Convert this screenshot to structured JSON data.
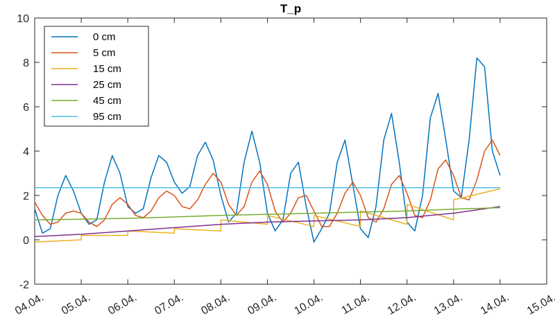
{
  "chart_data": {
    "type": "line",
    "title": "T_p",
    "xlabel": "",
    "ylabel": "",
    "ylim": [
      -2,
      10
    ],
    "xlim": [
      "04.04.",
      "15.04."
    ],
    "yticks": [
      -2,
      0,
      2,
      4,
      6,
      8,
      10
    ],
    "xticks": [
      "04.04.",
      "05.04.",
      "06.04.",
      "07.04.",
      "08.04.",
      "09.04.",
      "10.04.",
      "11.04.",
      "12.04.",
      "13.04.",
      "14.04.",
      "15.04."
    ],
    "grid": false,
    "legend_position": "top-left",
    "series": [
      {
        "name": "0 cm",
        "color": "#0072BD",
        "x": [
          "04.04. 00:00",
          "04.04. 04:00",
          "04.04. 08:00",
          "04.04. 12:00",
          "04.04. 16:00",
          "04.04. 20:00",
          "05.04. 00:00",
          "05.04. 04:00",
          "05.04. 08:00",
          "05.04. 12:00",
          "05.04. 16:00",
          "05.04. 20:00",
          "06.04. 00:00",
          "06.04. 04:00",
          "06.04. 08:00",
          "06.04. 12:00",
          "06.04. 16:00",
          "06.04. 20:00",
          "07.04. 00:00",
          "07.04. 04:00",
          "07.04. 08:00",
          "07.04. 12:00",
          "07.04. 16:00",
          "07.04. 20:00",
          "08.04. 00:00",
          "08.04. 04:00",
          "08.04. 08:00",
          "08.04. 12:00",
          "08.04. 16:00",
          "08.04. 20:00",
          "09.04. 00:00",
          "09.04. 04:00",
          "09.04. 08:00",
          "09.04. 12:00",
          "09.04. 16:00",
          "09.04. 20:00",
          "10.04. 00:00",
          "10.04. 04:00",
          "10.04. 08:00",
          "10.04. 12:00",
          "10.04. 16:00",
          "10.04. 20:00",
          "11.04. 00:00",
          "11.04. 04:00",
          "11.04. 08:00",
          "11.04. 12:00",
          "11.04. 16:00",
          "11.04. 20:00",
          "12.04. 00:00",
          "12.04. 04:00",
          "12.04. 08:00",
          "12.04. 12:00",
          "12.04. 16:00",
          "12.04. 20:00",
          "13.04. 00:00",
          "13.04. 04:00",
          "13.04. 08:00",
          "13.04. 12:00",
          "13.04. 16:00",
          "13.04. 20:00",
          "14.04. 00:00"
        ],
        "y": [
          1.4,
          0.3,
          0.5,
          2.0,
          2.9,
          2.2,
          1.2,
          0.7,
          0.9,
          2.6,
          3.8,
          3.0,
          1.5,
          1.2,
          1.4,
          2.8,
          3.8,
          3.5,
          2.6,
          2.1,
          2.4,
          3.8,
          4.4,
          3.6,
          2.0,
          0.8,
          1.2,
          3.5,
          4.9,
          3.5,
          1.2,
          0.4,
          0.9,
          3.0,
          3.5,
          1.5,
          -0.1,
          0.5,
          1.2,
          3.5,
          4.5,
          2.5,
          0.5,
          0.1,
          1.5,
          4.5,
          5.7,
          3.5,
          0.8,
          0.4,
          2.0,
          5.5,
          6.6,
          4.5,
          2.2,
          1.9,
          4.5,
          8.2,
          7.8,
          4.0,
          2.9
        ]
      },
      {
        "name": "5 cm",
        "color": "#D95319",
        "x": [
          "04.04. 00:00",
          "04.04. 04:00",
          "04.04. 08:00",
          "04.04. 12:00",
          "04.04. 16:00",
          "04.04. 20:00",
          "05.04. 00:00",
          "05.04. 04:00",
          "05.04. 08:00",
          "05.04. 12:00",
          "05.04. 16:00",
          "05.04. 20:00",
          "06.04. 00:00",
          "06.04. 04:00",
          "06.04. 08:00",
          "06.04. 12:00",
          "06.04. 16:00",
          "06.04. 20:00",
          "07.04. 00:00",
          "07.04. 04:00",
          "07.04. 08:00",
          "07.04. 12:00",
          "07.04. 16:00",
          "07.04. 20:00",
          "08.04. 00:00",
          "08.04. 04:00",
          "08.04. 08:00",
          "08.04. 12:00",
          "08.04. 16:00",
          "08.04. 20:00",
          "09.04. 00:00",
          "09.04. 04:00",
          "09.04. 08:00",
          "09.04. 12:00",
          "09.04. 16:00",
          "09.04. 20:00",
          "10.04. 00:00",
          "10.04. 04:00",
          "10.04. 08:00",
          "10.04. 12:00",
          "10.04. 16:00",
          "10.04. 20:00",
          "11.04. 00:00",
          "11.04. 04:00",
          "11.04. 08:00",
          "11.04. 12:00",
          "11.04. 16:00",
          "11.04. 20:00",
          "12.04. 00:00",
          "12.04. 04:00",
          "12.04. 08:00",
          "12.04. 12:00",
          "12.04. 16:00",
          "12.04. 20:00",
          "13.04. 00:00",
          "13.04. 04:00",
          "13.04. 08:00",
          "13.04. 12:00",
          "13.04. 16:00",
          "13.04. 20:00",
          "14.04. 00:00"
        ],
        "y": [
          1.7,
          1.1,
          0.7,
          0.8,
          1.2,
          1.3,
          1.2,
          0.8,
          0.6,
          0.9,
          1.6,
          1.9,
          1.6,
          1.1,
          1.0,
          1.3,
          1.9,
          2.2,
          2.0,
          1.5,
          1.4,
          1.8,
          2.5,
          3.0,
          2.6,
          1.6,
          1.1,
          1.5,
          2.6,
          3.1,
          2.5,
          1.3,
          0.8,
          1.2,
          1.9,
          2.0,
          1.3,
          0.6,
          0.6,
          1.2,
          2.1,
          2.6,
          2.0,
          1.0,
          0.8,
          1.4,
          2.5,
          2.9,
          2.1,
          1.1,
          1.0,
          1.8,
          3.2,
          3.6,
          2.9,
          1.9,
          1.8,
          2.7,
          4.0,
          4.5,
          3.8
        ]
      },
      {
        "name": "15 cm",
        "color": "#EDB120",
        "x": [
          "04.04.",
          "04.12.",
          "05.04.",
          "05.12.",
          "06.04.",
          "06.12.",
          "07.04.",
          "07.12.",
          "08.04.",
          "08.12.",
          "09.04.",
          "09.12.",
          "10.04.",
          "10.12.",
          "11.04.",
          "11.12.",
          "12.04.",
          "12.12.",
          "13.04.",
          "13.12.",
          "14.04."
        ],
        "y": [
          -0.1,
          -0.1,
          0.0,
          0.2,
          0.2,
          0.4,
          0.3,
          0.5,
          0.4,
          0.9,
          0.7,
          1.1,
          0.6,
          1.1,
          0.6,
          1.3,
          0.7,
          1.6,
          0.9,
          1.8,
          2.3
        ]
      },
      {
        "name": "25 cm",
        "color": "#7E2F8E",
        "x": [
          "04.04.",
          "05.04.",
          "06.04.",
          "07.04.",
          "08.04.",
          "09.04.",
          "10.04.",
          "11.04.",
          "12.04.",
          "13.04.",
          "14.04."
        ],
        "y": [
          0.15,
          0.25,
          0.4,
          0.55,
          0.7,
          0.8,
          0.85,
          0.9,
          1.0,
          1.2,
          1.5
        ]
      },
      {
        "name": "45 cm",
        "color": "#77AC30",
        "x": [
          "04.04.",
          "05.04.",
          "06.04.",
          "07.04.",
          "08.04.",
          "09.04.",
          "10.04.",
          "11.04.",
          "12.04.",
          "13.04.",
          "14.04."
        ],
        "y": [
          0.9,
          0.93,
          0.97,
          1.03,
          1.1,
          1.15,
          1.2,
          1.25,
          1.3,
          1.38,
          1.45
        ]
      },
      {
        "name": "95 cm",
        "color": "#4DBEEE",
        "x": [
          "04.04.",
          "14.04."
        ],
        "y": [
          2.35,
          2.35
        ]
      }
    ]
  }
}
